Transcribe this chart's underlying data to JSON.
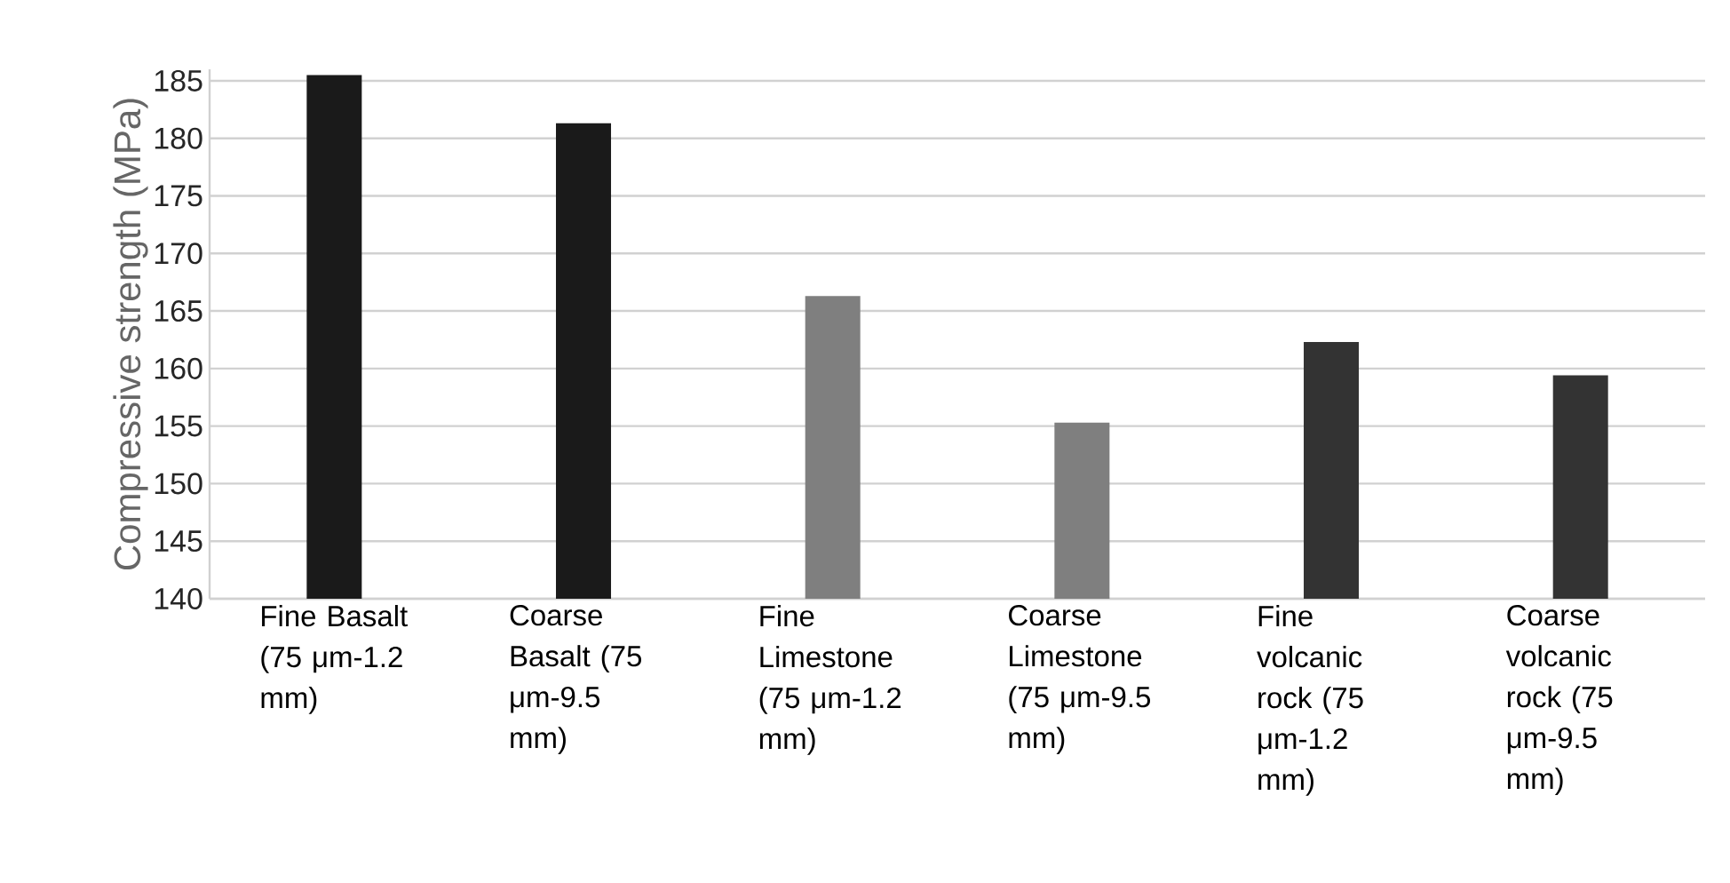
{
  "chart_data": {
    "type": "bar",
    "ylabel": "Compressive strength (MPa)",
    "categories": [
      "Fine Basalt (75 μm-1.2 mm)",
      "Coarse Basalt (75 μm-9.5 mm)",
      "Fine Limestone (75 μm-1.2 mm)",
      "Coarse Limestone (75 μm-9.5 mm)",
      "Fine volcanic rock (75 μm-1.2 mm)",
      "Coarse volcanic rock (75 μm-9.5 mm)"
    ],
    "values": [
      185.5,
      181.3,
      166.3,
      155.3,
      162.3,
      159.4
    ],
    "colors": [
      "#1a1a1a",
      "#1a1a1a",
      "#7f7f7f",
      "#7f7f7f",
      "#333333",
      "#333333"
    ],
    "ylim": [
      140,
      186
    ],
    "yticks": [
      140,
      145,
      150,
      155,
      160,
      165,
      170,
      175,
      180,
      185
    ],
    "grid": "y"
  }
}
